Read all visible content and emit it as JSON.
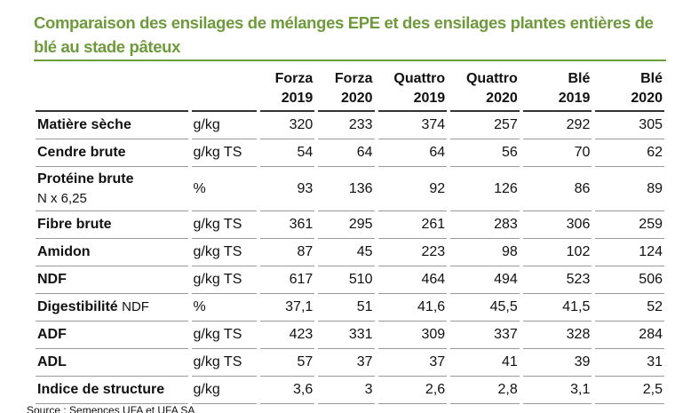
{
  "title": "Comparaison des ensilages de mélanges EPE et des ensilages plantes entières de blé au stade pâteux",
  "table": {
    "header": [
      {
        "name": "Forza",
        "year": "2019"
      },
      {
        "name": "Forza",
        "year": "2020"
      },
      {
        "name": "Quattro",
        "year": "2019"
      },
      {
        "name": "Quattro",
        "year": "2020"
      },
      {
        "name": "Blé",
        "year": "2019"
      },
      {
        "name": "Blé",
        "year": "2020"
      }
    ],
    "rows": [
      {
        "label": "Matière sèche",
        "unit": "g/kg",
        "values": [
          "320",
          "233",
          "374",
          "257",
          "292",
          "305"
        ]
      },
      {
        "label": "Cendre brute",
        "unit": "g/kg TS",
        "values": [
          "54",
          "64",
          "64",
          "56",
          "70",
          "62"
        ]
      },
      {
        "label": "Protéine brute",
        "note": "N x 6,25",
        "unit": "%",
        "values": [
          "93",
          "136",
          "92",
          "126",
          "86",
          "89"
        ]
      },
      {
        "label": "Fibre brute",
        "unit": "g/kg TS",
        "values": [
          "361",
          "295",
          "261",
          "283",
          "306",
          "259"
        ]
      },
      {
        "label": "Amidon",
        "unit": "g/kg TS",
        "values": [
          "87",
          "45",
          "223",
          "98",
          "102",
          "124"
        ]
      },
      {
        "label": "NDF",
        "unit": "g/kg TS",
        "values": [
          "617",
          "510",
          "464",
          "494",
          "523",
          "506"
        ]
      },
      {
        "label": "Digestibilité",
        "suffix": "NDF",
        "unit": "%",
        "values": [
          "37,1",
          "51",
          "41,6",
          "45,5",
          "41,5",
          "52"
        ]
      },
      {
        "label": "ADF",
        "unit": "g/kg TS",
        "values": [
          "423",
          "331",
          "309",
          "337",
          "328",
          "284"
        ]
      },
      {
        "label": "ADL",
        "unit": "g/kg TS",
        "values": [
          "57",
          "37",
          "37",
          "41",
          "39",
          "31"
        ]
      },
      {
        "label": "Indice de structure",
        "unit": "g/kg",
        "values": [
          "3,6",
          "3",
          "2,6",
          "2,8",
          "3,1",
          "2,5"
        ]
      }
    ]
  },
  "source": "Source : Semences UFA et UFA SA"
}
